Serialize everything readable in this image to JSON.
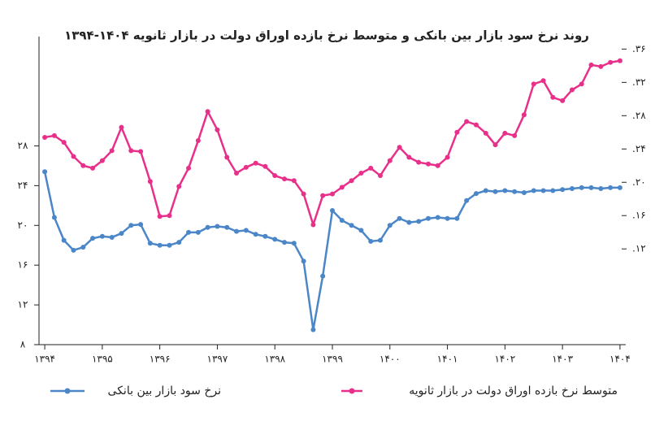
{
  "chart_data": {
    "type": "line",
    "title": "روند نرخ سود بازار بین بانکی و متوسط نرخ بازده اوراق دولت در بازار ثانویه ۱۴۰۴-۱۳۹۴",
    "x": [
      1394,
      1394.167,
      1394.333,
      1394.5,
      1394.667,
      1394.833,
      1395,
      1395.167,
      1395.333,
      1395.5,
      1395.667,
      1395.833,
      1396,
      1396.167,
      1396.333,
      1396.5,
      1396.667,
      1396.833,
      1397,
      1397.167,
      1397.333,
      1397.5,
      1397.667,
      1397.833,
      1398,
      1398.167,
      1398.333,
      1398.5,
      1398.667,
      1398.833,
      1399,
      1399.167,
      1399.333,
      1399.5,
      1399.667,
      1399.833,
      1400,
      1400.167,
      1400.333,
      1400.5,
      1400.667,
      1400.833,
      1401,
      1401.167,
      1401.333,
      1401.5,
      1401.667,
      1401.833,
      1402,
      1402.167,
      1402.333,
      1402.5,
      1402.667,
      1402.833,
      1403,
      1403.167,
      1403.333,
      1403.5,
      1403.667,
      1403.833,
      1404
    ],
    "xlim": [
      1393.9,
      1404.1
    ],
    "xticks": [
      {
        "value": 1394,
        "label": "۱۳۹۴"
      },
      {
        "value": 1395,
        "label": "۱۳۹۵"
      },
      {
        "value": 1396,
        "label": "۱۳۹۶"
      },
      {
        "value": 1397,
        "label": "۱۳۹۷"
      },
      {
        "value": 1398,
        "label": "۱۳۹۸"
      },
      {
        "value": 1399,
        "label": "۱۳۹۹"
      },
      {
        "value": 1400,
        "label": "۱۴۰۰"
      },
      {
        "value": 1401,
        "label": "۱۴۰۱"
      },
      {
        "value": 1402,
        "label": "۱۴۰۲"
      },
      {
        "value": 1403,
        "label": "۱۴۰۳"
      },
      {
        "value": 1404,
        "label": "۱۴۰۴"
      }
    ],
    "ylim": [
      8,
      39
    ],
    "yticks": [
      {
        "value": 8,
        "label": "۸"
      },
      {
        "value": 12,
        "label": "۱۲"
      },
      {
        "value": 16,
        "label": "۱۶"
      },
      {
        "value": 20,
        "label": "۲۰"
      },
      {
        "value": 24,
        "label": "۲۴"
      },
      {
        "value": 28,
        "label": "۲۸"
      }
    ],
    "y2lim": [
      0.5,
      37.5
    ],
    "y2ticks": [
      {
        "value": 12,
        "label": ".۱۲"
      },
      {
        "value": 16,
        "label": ".۱۶"
      },
      {
        "value": 20,
        "label": ".۲۰"
      },
      {
        "value": 24,
        "label": ".۲۴"
      },
      {
        "value": 28,
        "label": ".۲۸"
      },
      {
        "value": 32,
        "label": ".۳۲"
      },
      {
        "value": 36,
        "label": ".۳۶"
      }
    ],
    "series": [
      {
        "name": "نرخ سود بازار بین بانکی",
        "color": "#4a86c8",
        "axis": "y",
        "values": [
          25.4,
          20.8,
          18.5,
          17.5,
          17.8,
          18.7,
          18.9,
          18.8,
          19.2,
          20,
          20.1,
          18.2,
          18,
          18,
          18.3,
          19.3,
          19.3,
          19.8,
          19.9,
          19.8,
          19.4,
          19.5,
          19.1,
          18.9,
          18.6,
          18.3,
          18.2,
          16.4,
          9.5,
          14.9,
          21.5,
          20.5,
          20,
          19.5,
          18.4,
          18.5,
          20,
          20.7,
          20.3,
          20.4,
          20.7,
          20.8,
          20.7,
          20.7,
          22.5,
          23.2,
          23.5,
          23.4,
          23.5,
          23.4,
          23.3,
          23.5,
          23.5,
          23.5,
          23.6,
          23.7,
          23.8,
          23.8,
          23.7,
          23.8,
          23.8
        ]
      },
      {
        "name": "متوسط نرخ بازده اوراق دولت در بازار ثانویه",
        "color": "#e8308a",
        "axis": "y2",
        "values": [
          25.4,
          25.6,
          24.8,
          23.1,
          22,
          21.7,
          22.6,
          23.8,
          26.6,
          23.8,
          23.7,
          20.1,
          15.9,
          16,
          19.5,
          21.7,
          25,
          28.5,
          26.3,
          23,
          21.1,
          21.8,
          22.3,
          21.9,
          20.8,
          20.4,
          20.2,
          18.6,
          14.9,
          18.4,
          18.6,
          19.4,
          20.2,
          21.1,
          21.7,
          20.8,
          22.6,
          24.2,
          23,
          22.4,
          22.2,
          22,
          23,
          26,
          27.3,
          26.9,
          25.9,
          24.5,
          25.9,
          25.6,
          28.1,
          31.8,
          32.2,
          30.2,
          29.8,
          31.1,
          31.8,
          34.1,
          33.9,
          34.4,
          34.6
        ]
      }
    ]
  }
}
